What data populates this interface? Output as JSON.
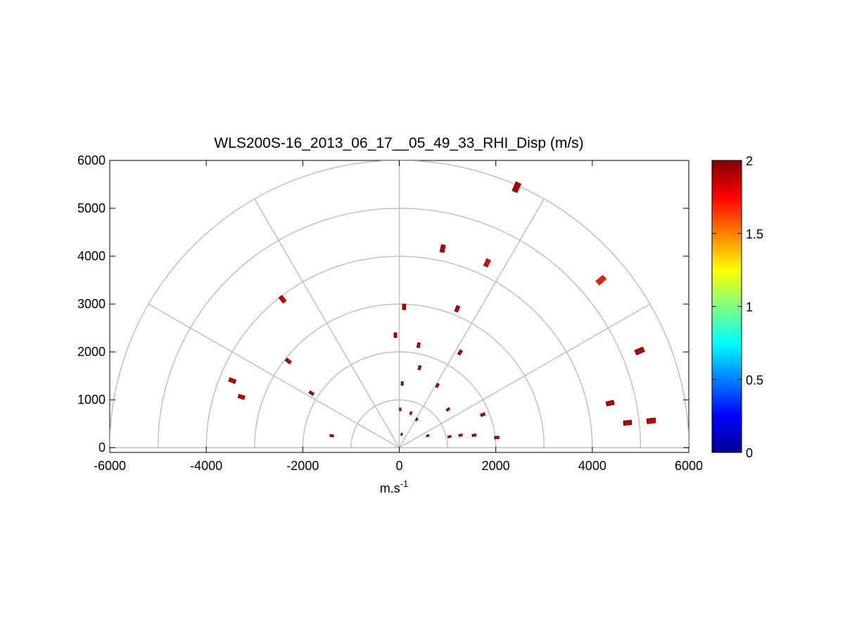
{
  "chart_data": {
    "type": "scatter",
    "title": "WLS200S-16_2013_06_17__05_49_33_RHI_Disp (m/s)",
    "xlabel_base": "m.s",
    "xlabel_sup": "-1",
    "ylabel": "",
    "xlim": [
      -6000,
      6000
    ],
    "ylim": [
      -100,
      6000
    ],
    "x_ticks": [
      -6000,
      -4000,
      -2000,
      0,
      2000,
      4000,
      6000
    ],
    "y_ticks": [
      0,
      1000,
      2000,
      3000,
      4000,
      5000,
      6000
    ],
    "polar_grid": {
      "rings": [
        1000,
        2000,
        3000,
        4000,
        5000,
        6000
      ],
      "spokes_deg": [
        0,
        30,
        60,
        90,
        120,
        150,
        180
      ]
    },
    "colorbar": {
      "min": 0,
      "max": 2,
      "ticks": [
        0,
        0.5,
        1,
        1.5,
        2
      ],
      "colormap": "jet"
    },
    "points": [
      {
        "x": 2430,
        "y": 5440,
        "value": 1.9,
        "angle_deg": 66
      },
      {
        "x": 900,
        "y": 4160,
        "value": 1.9,
        "angle_deg": 78
      },
      {
        "x": 1820,
        "y": 3860,
        "value": 1.8,
        "angle_deg": 65
      },
      {
        "x": 4180,
        "y": 3500,
        "value": 1.7,
        "angle_deg": 40
      },
      {
        "x": -2420,
        "y": 3100,
        "value": 1.85,
        "angle_deg": 128
      },
      {
        "x": 100,
        "y": 2940,
        "value": 1.9,
        "angle_deg": 88
      },
      {
        "x": 1200,
        "y": 2900,
        "value": 1.9,
        "angle_deg": 67
      },
      {
        "x": -80,
        "y": 2350,
        "value": 1.9,
        "angle_deg": 92
      },
      {
        "x": 400,
        "y": 2140,
        "value": 1.9,
        "angle_deg": 79
      },
      {
        "x": 1260,
        "y": 1990,
        "value": 1.9,
        "angle_deg": 57
      },
      {
        "x": 4980,
        "y": 2020,
        "value": 1.9,
        "angle_deg": 22
      },
      {
        "x": -2300,
        "y": 1810,
        "value": 1.9,
        "angle_deg": 142
      },
      {
        "x": 420,
        "y": 1670,
        "value": 1.9,
        "angle_deg": 76
      },
      {
        "x": -3460,
        "y": 1400,
        "value": 1.9,
        "angle_deg": 158
      },
      {
        "x": 60,
        "y": 1340,
        "value": 1.9,
        "angle_deg": 87
      },
      {
        "x": 790,
        "y": 1300,
        "value": 1.9,
        "angle_deg": 59
      },
      {
        "x": -1820,
        "y": 1140,
        "value": 1.9,
        "angle_deg": 148
      },
      {
        "x": -3270,
        "y": 1060,
        "value": 1.9,
        "angle_deg": 162
      },
      {
        "x": 4370,
        "y": 930,
        "value": 1.9,
        "angle_deg": 12
      },
      {
        "x": 20,
        "y": 800,
        "value": 1.9,
        "angle_deg": 88
      },
      {
        "x": 1010,
        "y": 800,
        "value": 1.9,
        "angle_deg": 38
      },
      {
        "x": 1730,
        "y": 690,
        "value": 1.9,
        "angle_deg": 22
      },
      {
        "x": 240,
        "y": 720,
        "value": 1.9,
        "angle_deg": 71
      },
      {
        "x": 4730,
        "y": 520,
        "value": 1.9,
        "angle_deg": 6
      },
      {
        "x": 5220,
        "y": 560,
        "value": 1.9,
        "angle_deg": 6
      },
      {
        "x": 360,
        "y": 590,
        "value": 1.9,
        "angle_deg": 59
      },
      {
        "x": -1400,
        "y": 250,
        "value": 1.9,
        "angle_deg": 170
      },
      {
        "x": 50,
        "y": 280,
        "value": 1.9,
        "angle_deg": 80
      },
      {
        "x": 590,
        "y": 250,
        "value": 1.9,
        "angle_deg": 23
      },
      {
        "x": 1040,
        "y": 230,
        "value": 1.9,
        "angle_deg": 12
      },
      {
        "x": 1270,
        "y": 260,
        "value": 1.9,
        "angle_deg": 12
      },
      {
        "x": 1550,
        "y": 260,
        "value": 1.9,
        "angle_deg": 10
      },
      {
        "x": 2020,
        "y": 210,
        "value": 1.9,
        "angle_deg": 6
      }
    ]
  }
}
